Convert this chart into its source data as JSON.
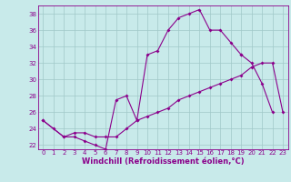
{
  "x_all": [
    0,
    1,
    2,
    3,
    4,
    5,
    6,
    7,
    8,
    9,
    10,
    11,
    12,
    13,
    14,
    15,
    16,
    17,
    18,
    19,
    20,
    21,
    22,
    23
  ],
  "line1_y": [
    25,
    24,
    23,
    23,
    22.5,
    22,
    21.5,
    27.5,
    28,
    25,
    33,
    33.5,
    36,
    37.5,
    38,
    38.5,
    36,
    36,
    34.5,
    33,
    null,
    null,
    null,
    null
  ],
  "line2_y": [
    null,
    null,
    null,
    null,
    null,
    null,
    null,
    null,
    null,
    null,
    null,
    null,
    null,
    null,
    null,
    null,
    null,
    null,
    null,
    33,
    32,
    29.5,
    26,
    null
  ],
  "line3_y": [
    25,
    null,
    23,
    23.5,
    23.5,
    23,
    23,
    23,
    24,
    25,
    25.5,
    26,
    26.5,
    27.5,
    28,
    28.5,
    29,
    29.5,
    30,
    30.5,
    31.5,
    32,
    32,
    26
  ],
  "line_color": "#8B008B",
  "bg_color": "#c8eaea",
  "grid_color": "#a0c8c8",
  "xlabel": "Windchill (Refroidissement éolien,°C)",
  "ylim": [
    21.5,
    39
  ],
  "xlim": [
    -0.5,
    23.5
  ],
  "yticks": [
    22,
    24,
    26,
    28,
    30,
    32,
    34,
    36,
    38
  ],
  "xticks": [
    0,
    1,
    2,
    3,
    4,
    5,
    6,
    7,
    8,
    9,
    10,
    11,
    12,
    13,
    14,
    15,
    16,
    17,
    18,
    19,
    20,
    21,
    22,
    23
  ],
  "tick_fontsize": 5,
  "xlabel_fontsize": 6,
  "marker_size": 2.0,
  "line_width": 0.8
}
